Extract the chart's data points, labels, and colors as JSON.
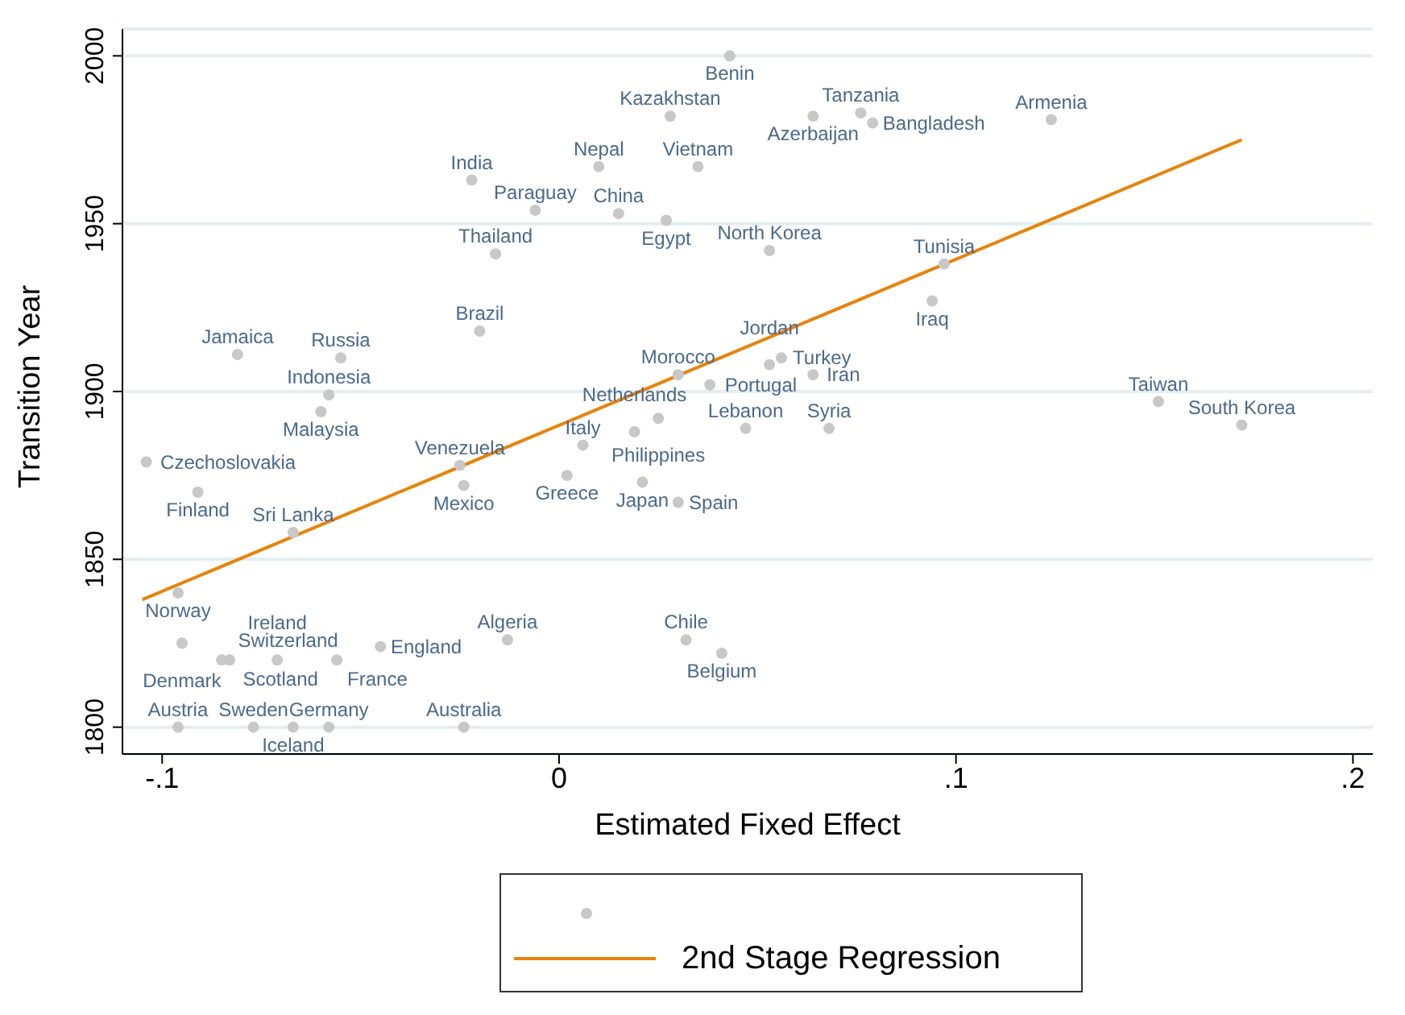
{
  "chart_data": {
    "type": "scatter",
    "xlabel": "Estimated Fixed Effect",
    "ylabel": "Transition Year",
    "xlim": [
      -0.11,
      0.205
    ],
    "ylim": [
      1792,
      2008
    ],
    "xticks": [
      {
        "value": -0.1,
        "label": "-.1"
      },
      0,
      {
        "value": 0.1,
        "label": ".1"
      },
      {
        "value": 0.2,
        "label": ".2"
      }
    ],
    "yticks": [
      1800,
      1850,
      1900,
      1950,
      2000
    ],
    "grid": "y",
    "legend": "bottom",
    "series": [
      {
        "marker": "circle",
        "color": "#c8c8c8",
        "x": [
          0.043,
          0.028,
          0.064,
          0.076,
          0.079,
          0.124,
          -0.022,
          0.01,
          0.035,
          -0.006,
          0.015,
          0.027,
          0.053,
          -0.016,
          0.097,
          0.094,
          -0.02,
          -0.081,
          -0.055,
          -0.058,
          -0.06,
          -0.104,
          -0.091,
          -0.067,
          -0.096,
          -0.025,
          -0.024,
          0.002,
          0.006,
          0.019,
          0.025,
          0.021,
          0.03,
          0.047,
          0.068,
          0.03,
          0.038,
          0.053,
          0.056,
          0.064,
          0.151,
          0.172,
          -0.095,
          -0.085,
          -0.083,
          -0.071,
          -0.056,
          -0.045,
          -0.013,
          -0.096,
          -0.077,
          -0.067,
          -0.058,
          -0.024,
          0.032,
          0.041
        ],
        "values": [
          2000,
          1982,
          1982,
          1983,
          1980,
          1981,
          1963,
          1967,
          1967,
          1954,
          1953,
          1951,
          1942,
          1941,
          1938,
          1927,
          1918,
          1911,
          1910,
          1899,
          1894,
          1879,
          1870,
          1858,
          1840,
          1878,
          1872,
          1875,
          1884,
          1888,
          1892,
          1873,
          1867,
          1889,
          1889,
          1905,
          1902,
          1908,
          1910,
          1905,
          1897,
          1890,
          1825,
          1820,
          1820,
          1820,
          1820,
          1824,
          1826,
          1800,
          1800,
          1800,
          1800,
          1800,
          1826,
          1822
        ]
      },
      {
        "type": "line",
        "name": "2nd Stage Regression",
        "color": "#e8830c",
        "x": [
          -0.105,
          0.172
        ],
        "values": [
          1838,
          1975
        ]
      }
    ],
    "annotations": [
      {
        "text": "Benin",
        "x": 0.043,
        "y": 2000
      },
      {
        "text": "Kazakhstan",
        "x": 0.028,
        "y": 1982
      },
      {
        "text": "Azerbaijan",
        "x": 0.064,
        "y": 1982
      },
      {
        "text": "Tanzania",
        "x": 0.076,
        "y": 1983
      },
      {
        "text": "Bangladesh",
        "x": 0.079,
        "y": 1980
      },
      {
        "text": "Armenia",
        "x": 0.124,
        "y": 1981
      },
      {
        "text": "India",
        "x": -0.022,
        "y": 1963
      },
      {
        "text": "Nepal",
        "x": 0.01,
        "y": 1967
      },
      {
        "text": "Vietnam",
        "x": 0.035,
        "y": 1967
      },
      {
        "text": "Paraguay",
        "x": -0.006,
        "y": 1954
      },
      {
        "text": "China",
        "x": 0.015,
        "y": 1953
      },
      {
        "text": "Egypt",
        "x": 0.027,
        "y": 1951
      },
      {
        "text": "North Korea",
        "x": 0.053,
        "y": 1942
      },
      {
        "text": "Thailand",
        "x": -0.016,
        "y": 1941
      },
      {
        "text": "Tunisia",
        "x": 0.097,
        "y": 1938
      },
      {
        "text": "Iraq",
        "x": 0.094,
        "y": 1927
      },
      {
        "text": "Brazil",
        "x": -0.02,
        "y": 1918
      },
      {
        "text": "Jamaica",
        "x": -0.081,
        "y": 1911
      },
      {
        "text": "Russia",
        "x": -0.055,
        "y": 1910
      },
      {
        "text": "Indonesia",
        "x": -0.058,
        "y": 1899
      },
      {
        "text": "Malaysia",
        "x": -0.06,
        "y": 1894
      },
      {
        "text": "Czechoslovakia",
        "x": -0.104,
        "y": 1879
      },
      {
        "text": "Finland",
        "x": -0.091,
        "y": 1870
      },
      {
        "text": "Sri Lanka",
        "x": -0.067,
        "y": 1858
      },
      {
        "text": "Norway",
        "x": -0.096,
        "y": 1840
      },
      {
        "text": "Venezuela",
        "x": -0.025,
        "y": 1878
      },
      {
        "text": "Mexico",
        "x": -0.024,
        "y": 1872
      },
      {
        "text": "Greece",
        "x": 0.002,
        "y": 1875
      },
      {
        "text": "Italy",
        "x": 0.006,
        "y": 1884
      },
      {
        "text": "Netherlands",
        "x": 0.019,
        "y": 1888
      },
      {
        "text": "Philippines",
        "x": 0.025,
        "y": 1892
      },
      {
        "text": "Japan",
        "x": 0.021,
        "y": 1873
      },
      {
        "text": "Spain",
        "x": 0.03,
        "y": 1867
      },
      {
        "text": "Lebanon",
        "x": 0.047,
        "y": 1889
      },
      {
        "text": "Syria",
        "x": 0.068,
        "y": 1889
      },
      {
        "text": "Morocco",
        "x": 0.03,
        "y": 1905
      },
      {
        "text": "Portugal",
        "x": 0.038,
        "y": 1902
      },
      {
        "text": "Jordan",
        "x": 0.053,
        "y": 1908
      },
      {
        "text": "Turkey",
        "x": 0.056,
        "y": 1910
      },
      {
        "text": "Iran",
        "x": 0.064,
        "y": 1905
      },
      {
        "text": "Taiwan",
        "x": 0.151,
        "y": 1897
      },
      {
        "text": "South Korea",
        "x": 0.172,
        "y": 1890
      },
      {
        "text": "Denmark",
        "x": -0.095,
        "y": 1825
      },
      {
        "text": "Switzerland",
        "x": -0.085,
        "y": 1820
      },
      {
        "text": "Scotland",
        "x": -0.083,
        "y": 1820
      },
      {
        "text": "Ireland",
        "x": -0.071,
        "y": 1820
      },
      {
        "text": "France",
        "x": -0.056,
        "y": 1820
      },
      {
        "text": "England",
        "x": -0.045,
        "y": 1824
      },
      {
        "text": "Algeria",
        "x": -0.013,
        "y": 1826
      },
      {
        "text": "Austria",
        "x": -0.096,
        "y": 1800
      },
      {
        "text": "Sweden",
        "x": -0.077,
        "y": 1800
      },
      {
        "text": "Iceland",
        "x": -0.067,
        "y": 1800
      },
      {
        "text": "Germany",
        "x": -0.058,
        "y": 1800
      },
      {
        "text": "Australia",
        "x": -0.024,
        "y": 1800
      },
      {
        "text": "Chile",
        "x": 0.032,
        "y": 1826
      },
      {
        "text": "Belgium",
        "x": 0.041,
        "y": 1822
      }
    ]
  }
}
